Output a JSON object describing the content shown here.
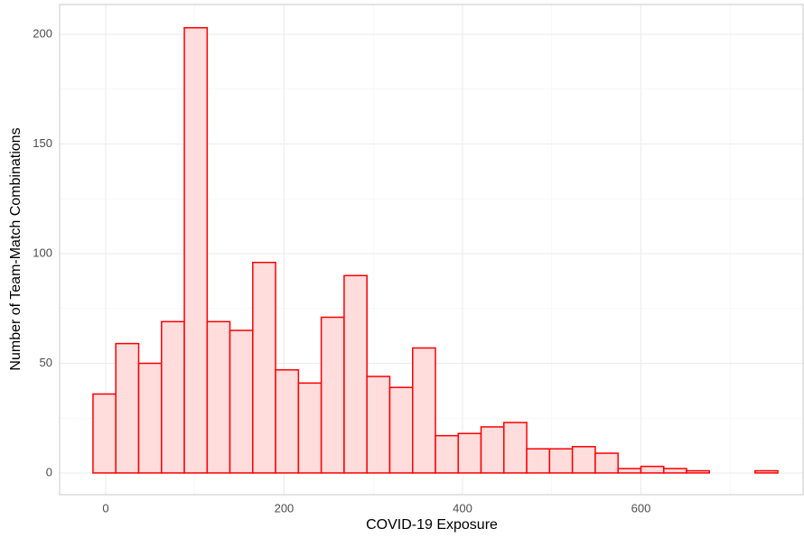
{
  "chart_data": {
    "type": "histogram",
    "x_label": "COVID-19 Exposure",
    "y_label": "Number of Team-Match Combinations",
    "bins": [
      -14.2,
      11.4,
      37.0,
      62.6,
      88.2,
      113.8,
      139.3,
      164.9,
      190.5,
      216.1,
      241.7,
      267.3,
      292.9,
      318.5,
      344.1,
      369.7,
      395.2,
      420.8,
      446.4,
      472.0,
      497.6,
      523.2,
      548.8,
      574.4,
      600.0,
      625.6,
      651.1,
      676.7,
      702.3,
      727.9,
      753.5
    ],
    "values": [
      36,
      59,
      50,
      69,
      203,
      69,
      65,
      96,
      47,
      41,
      71,
      90,
      44,
      39,
      57,
      17,
      18,
      21,
      23,
      11,
      11,
      12,
      9,
      2,
      3,
      2,
      1,
      0,
      0,
      1
    ],
    "color": "#ff0000",
    "fill": "#ffdddd",
    "xlim": [
      -51.6,
      781.8
    ],
    "ylim": [
      -9.9,
      213.6
    ],
    "xticks": [
      0,
      200,
      400,
      600
    ],
    "yticks": [
      0,
      50,
      100,
      150,
      200
    ],
    "grid": true
  }
}
